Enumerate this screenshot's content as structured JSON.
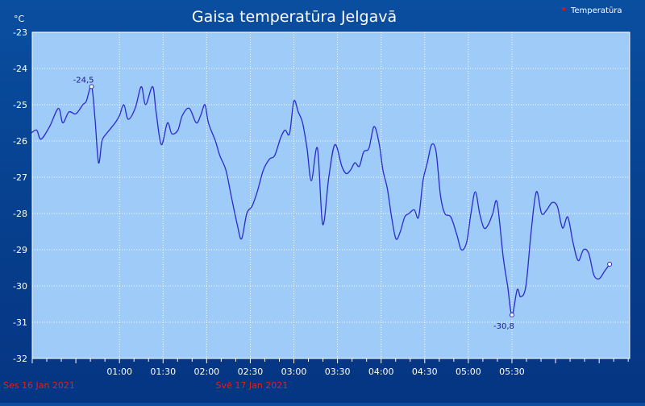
{
  "chart_data": {
    "type": "line",
    "title": "Gaisa temperatūra Jelgavā",
    "ylabel": "°C",
    "xlabel": "",
    "ylim": [
      -32,
      -23
    ],
    "y_ticks": [
      -23,
      -24,
      -25,
      -26,
      -27,
      -28,
      -29,
      -30,
      -31,
      -32
    ],
    "x_range_hours": [
      23.0,
      29.85
    ],
    "x_ticks": [
      {
        "at": 24.0,
        "label": "01:00"
      },
      {
        "at": 24.5,
        "label": "01:30"
      },
      {
        "at": 25.0,
        "label": "02:00"
      },
      {
        "at": 25.5,
        "label": "02:30"
      },
      {
        "at": 26.0,
        "label": "03:00"
      },
      {
        "at": 26.5,
        "label": "03:30"
      },
      {
        "at": 27.0,
        "label": "04:00"
      },
      {
        "at": 27.5,
        "label": "04:30"
      },
      {
        "at": 28.0,
        "label": "05:00"
      },
      {
        "at": 28.5,
        "label": "05:30"
      }
    ],
    "date_labels": [
      "Ses 16 Jan 2021",
      "Svē 17 Jan 2021"
    ],
    "grid": true,
    "legend": {
      "position": "top-right",
      "entries": [
        "Temperatūra"
      ]
    },
    "series": [
      {
        "name": "Temperatūra",
        "color": "#2a2ad0",
        "points": [
          [
            22.98,
            -25.8
          ],
          [
            23.05,
            -25.7
          ],
          [
            23.1,
            -25.95
          ],
          [
            23.2,
            -25.6
          ],
          [
            23.3,
            -25.1
          ],
          [
            23.35,
            -25.5
          ],
          [
            23.42,
            -25.2
          ],
          [
            23.5,
            -25.25
          ],
          [
            23.58,
            -25.0
          ],
          [
            23.62,
            -24.9
          ],
          [
            23.68,
            -24.5
          ],
          [
            23.72,
            -25.4
          ],
          [
            23.76,
            -26.6
          ],
          [
            23.8,
            -26.0
          ],
          [
            23.85,
            -25.8
          ],
          [
            23.95,
            -25.5
          ],
          [
            24.0,
            -25.3
          ],
          [
            24.05,
            -25.0
          ],
          [
            24.1,
            -25.4
          ],
          [
            24.18,
            -25.1
          ],
          [
            24.25,
            -24.5
          ],
          [
            24.3,
            -25.0
          ],
          [
            24.38,
            -24.5
          ],
          [
            24.42,
            -25.2
          ],
          [
            24.48,
            -26.1
          ],
          [
            24.55,
            -25.5
          ],
          [
            24.6,
            -25.8
          ],
          [
            24.67,
            -25.7
          ],
          [
            24.72,
            -25.3
          ],
          [
            24.8,
            -25.1
          ],
          [
            24.88,
            -25.5
          ],
          [
            24.93,
            -25.3
          ],
          [
            24.98,
            -25.0
          ],
          [
            25.02,
            -25.5
          ],
          [
            25.1,
            -26.0
          ],
          [
            25.15,
            -26.4
          ],
          [
            25.22,
            -26.8
          ],
          [
            25.28,
            -27.5
          ],
          [
            25.35,
            -28.3
          ],
          [
            25.4,
            -28.7
          ],
          [
            25.46,
            -28.0
          ],
          [
            25.52,
            -27.8
          ],
          [
            25.58,
            -27.4
          ],
          [
            25.65,
            -26.8
          ],
          [
            25.72,
            -26.5
          ],
          [
            25.78,
            -26.4
          ],
          [
            25.85,
            -25.9
          ],
          [
            25.9,
            -25.7
          ],
          [
            25.95,
            -25.8
          ],
          [
            26.0,
            -24.9
          ],
          [
            26.05,
            -25.2
          ],
          [
            26.1,
            -25.5
          ],
          [
            26.15,
            -26.2
          ],
          [
            26.2,
            -27.1
          ],
          [
            26.27,
            -26.2
          ],
          [
            26.33,
            -28.3
          ],
          [
            26.4,
            -27.0
          ],
          [
            26.47,
            -26.1
          ],
          [
            26.55,
            -26.7
          ],
          [
            26.6,
            -26.9
          ],
          [
            26.65,
            -26.8
          ],
          [
            26.7,
            -26.6
          ],
          [
            26.75,
            -26.7
          ],
          [
            26.8,
            -26.3
          ],
          [
            26.86,
            -26.2
          ],
          [
            26.92,
            -25.6
          ],
          [
            26.98,
            -26.1
          ],
          [
            27.02,
            -26.8
          ],
          [
            27.07,
            -27.3
          ],
          [
            27.12,
            -28.1
          ],
          [
            27.17,
            -28.7
          ],
          [
            27.22,
            -28.5
          ],
          [
            27.27,
            -28.1
          ],
          [
            27.32,
            -28.0
          ],
          [
            27.38,
            -27.9
          ],
          [
            27.43,
            -28.1
          ],
          [
            27.48,
            -27.1
          ],
          [
            27.53,
            -26.6
          ],
          [
            27.58,
            -26.1
          ],
          [
            27.63,
            -26.3
          ],
          [
            27.68,
            -27.5
          ],
          [
            27.73,
            -28.0
          ],
          [
            27.8,
            -28.1
          ],
          [
            27.87,
            -28.6
          ],
          [
            27.92,
            -29.0
          ],
          [
            27.98,
            -28.8
          ],
          [
            28.03,
            -28.0
          ],
          [
            28.08,
            -27.4
          ],
          [
            28.13,
            -28.0
          ],
          [
            28.18,
            -28.4
          ],
          [
            28.23,
            -28.3
          ],
          [
            28.28,
            -28.0
          ],
          [
            28.33,
            -27.7
          ],
          [
            28.4,
            -29.2
          ],
          [
            28.45,
            -30.0
          ],
          [
            28.5,
            -30.8
          ],
          [
            28.56,
            -30.1
          ],
          [
            28.6,
            -30.3
          ],
          [
            28.66,
            -30.0
          ],
          [
            28.72,
            -28.5
          ],
          [
            28.78,
            -27.4
          ],
          [
            28.84,
            -28.0
          ],
          [
            28.9,
            -27.9
          ],
          [
            28.96,
            -27.7
          ],
          [
            29.02,
            -27.8
          ],
          [
            29.08,
            -28.4
          ],
          [
            29.14,
            -28.1
          ],
          [
            29.2,
            -28.8
          ],
          [
            29.26,
            -29.3
          ],
          [
            29.32,
            -29.0
          ],
          [
            29.38,
            -29.1
          ],
          [
            29.44,
            -29.7
          ],
          [
            29.5,
            -29.8
          ],
          [
            29.56,
            -29.6
          ],
          [
            29.62,
            -29.4
          ]
        ]
      }
    ],
    "annotations": [
      {
        "label": "-24,5",
        "x": 23.68,
        "y": -24.5
      },
      {
        "label": "-30,8",
        "x": 28.5,
        "y": -30.8
      }
    ]
  }
}
